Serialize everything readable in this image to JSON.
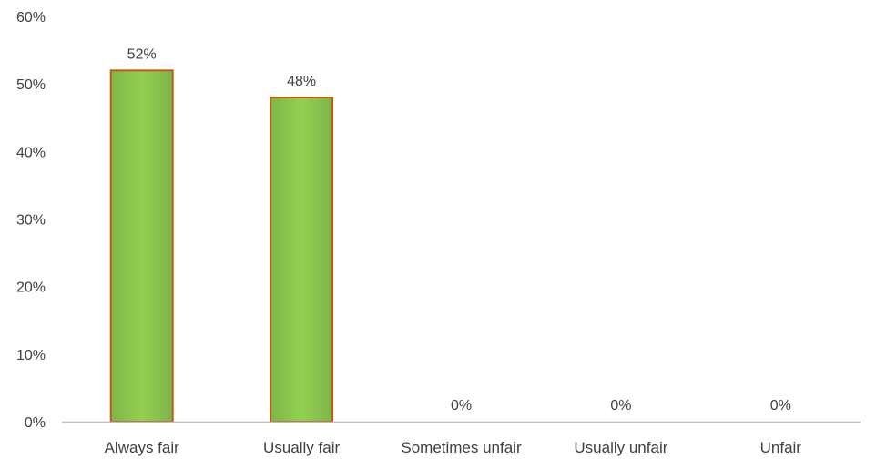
{
  "chart_data": {
    "type": "bar",
    "categories": [
      "Always fair",
      "Usually fair",
      "Sometimes unfair",
      "Usually unfair",
      "Unfair"
    ],
    "values": [
      52,
      48,
      0,
      0,
      0
    ],
    "data_labels": [
      "52%",
      "48%",
      "0%",
      "0%",
      "0%"
    ],
    "y_tick_values": [
      0,
      10,
      20,
      30,
      40,
      50,
      60
    ],
    "y_tick_labels": [
      "0%",
      "10%",
      "20%",
      "30%",
      "40%",
      "50%",
      "60%"
    ],
    "ylim": [
      0,
      60
    ],
    "grid": false,
    "legend": "none",
    "colors": {
      "bar_fill_center": "#92d050",
      "bar_fill_edge": "#7fb54a",
      "bar_stroke": "#c55a11",
      "axis": "#bfbfbf",
      "text": "#404040"
    }
  }
}
